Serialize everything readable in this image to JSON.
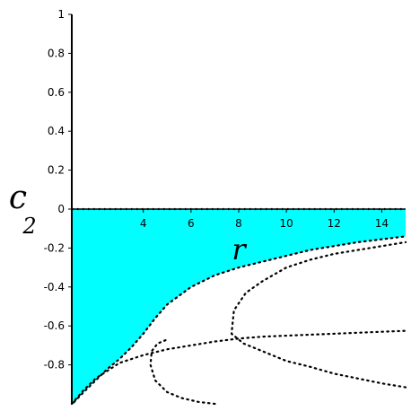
{
  "chart_data": {
    "type": "area",
    "title": "",
    "xlabel": "r",
    "ylabel": "c",
    "ylabel_subscript": "2",
    "xlim": [
      1,
      15
    ],
    "ylim": [
      -1,
      1
    ],
    "x_ticks": [
      {
        "value": 4,
        "label": "4"
      },
      {
        "value": 6,
        "label": "6"
      },
      {
        "value": 8,
        "label": "8"
      },
      {
        "value": 10,
        "label": "10"
      },
      {
        "value": 12,
        "label": "12"
      },
      {
        "value": 14,
        "label": "14"
      }
    ],
    "y_ticks": [
      {
        "value": 1,
        "label": "1"
      },
      {
        "value": 0.8,
        "label": "0.8"
      },
      {
        "value": 0.6,
        "label": "0.6"
      },
      {
        "value": 0.4,
        "label": "0.4"
      },
      {
        "value": 0.2,
        "label": "0.2"
      },
      {
        "value": 0,
        "label": "0"
      },
      {
        "value": -0.2,
        "label": "-0.2"
      },
      {
        "value": -0.4,
        "label": "-0.4"
      },
      {
        "value": -0.6,
        "label": "-0.6"
      },
      {
        "value": -0.8,
        "label": "-0.8"
      }
    ],
    "fill_color": "#00ffff",
    "curve_color": "#000000",
    "grid": false,
    "series": [
      {
        "style": "dotted",
        "x": [
          1.1,
          1.5,
          2.0,
          2.5,
          3.0,
          3.5,
          4.0,
          4.5,
          5.0,
          6.0,
          7.0,
          8.0,
          9.0,
          10.0,
          11.0,
          12.0,
          13.0,
          14.0,
          15.0
        ],
        "y": [
          -0.99,
          -0.94,
          -0.88,
          -0.82,
          -0.77,
          -0.71,
          -0.64,
          -0.56,
          -0.49,
          -0.4,
          -0.34,
          -0.3,
          -0.27,
          -0.24,
          -0.21,
          -0.19,
          -0.17,
          -0.155,
          -0.14
        ]
      },
      {
        "style": "dotted",
        "x": [
          1.0,
          1.5,
          2.0,
          2.5,
          3.0,
          4.0,
          5.0,
          6.0,
          7.0,
          8.0,
          9.0,
          10.0,
          11.0,
          12.0,
          13.0,
          14.0,
          15.0
        ],
        "y": [
          -1.0,
          -0.93,
          -0.87,
          -0.83,
          -0.79,
          -0.75,
          -0.72,
          -0.7,
          -0.68,
          -0.665,
          -0.655,
          -0.65,
          -0.645,
          -0.64,
          -0.635,
          -0.63,
          -0.625
        ]
      },
      {
        "style": "dotted",
        "x": [
          7.0,
          6.3,
          5.6,
          5.0,
          4.5,
          4.3,
          4.35,
          4.6,
          5.0
        ],
        "y": [
          -1.0,
          -0.99,
          -0.97,
          -0.94,
          -0.88,
          -0.8,
          -0.73,
          -0.69,
          -0.67
        ]
      },
      {
        "style": "dotted",
        "x": [
          15.0,
          14.0,
          13.0,
          12.0,
          11.0,
          10.0,
          9.0,
          8.2,
          7.7,
          7.8,
          8.3,
          9.0,
          10.0,
          11.0,
          12.0,
          13.0,
          14.0,
          15.0
        ],
        "y": [
          -0.915,
          -0.895,
          -0.87,
          -0.845,
          -0.81,
          -0.78,
          -0.73,
          -0.69,
          -0.64,
          -0.52,
          -0.43,
          -0.37,
          -0.3,
          -0.26,
          -0.23,
          -0.21,
          -0.19,
          -0.17
        ]
      }
    ],
    "shaded_region": {
      "upper": 0,
      "lower_series_index": 0
    }
  }
}
